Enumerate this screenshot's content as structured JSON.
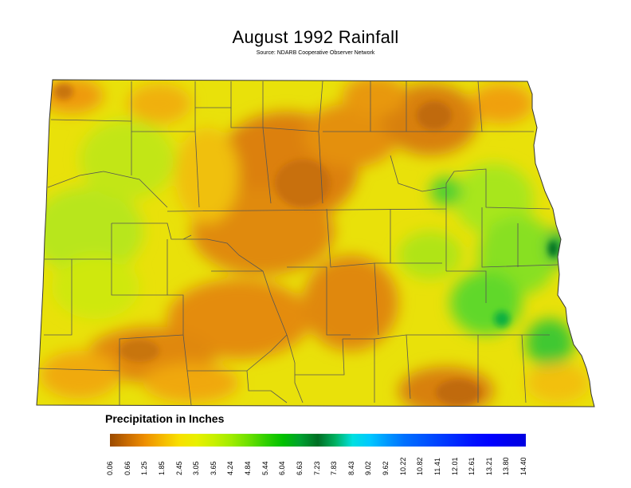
{
  "title": "August 1992 Rainfall",
  "subtitle": "Source: NDARB Cooperative Observer Network",
  "legend": {
    "title": "Precipitation in Inches",
    "ticks": [
      "0.06",
      "0.66",
      "1.25",
      "1.85",
      "2.45",
      "3.05",
      "3.65",
      "4.24",
      "4.84",
      "5.44",
      "6.04",
      "6.63",
      "7.23",
      "7.83",
      "8.43",
      "9.02",
      "9.62",
      "10.22",
      "10.82",
      "11.41",
      "12.01",
      "12.61",
      "13.21",
      "13.80",
      "14.40"
    ],
    "colors": [
      "#9a4a00",
      "#c86a00",
      "#ee8e00",
      "#f5b800",
      "#f8e000",
      "#e8f000",
      "#c8f000",
      "#a0ec00",
      "#6ce000",
      "#30d000",
      "#00c000",
      "#00a030",
      "#006f24",
      "#00b060",
      "#00e0e0",
      "#00c8ff",
      "#0098ff",
      "#0070ff",
      "#0058ff",
      "#0040ff",
      "#0028ff",
      "#0010ff",
      "#0000ff",
      "#0000ee",
      "#0000e0"
    ]
  }
}
